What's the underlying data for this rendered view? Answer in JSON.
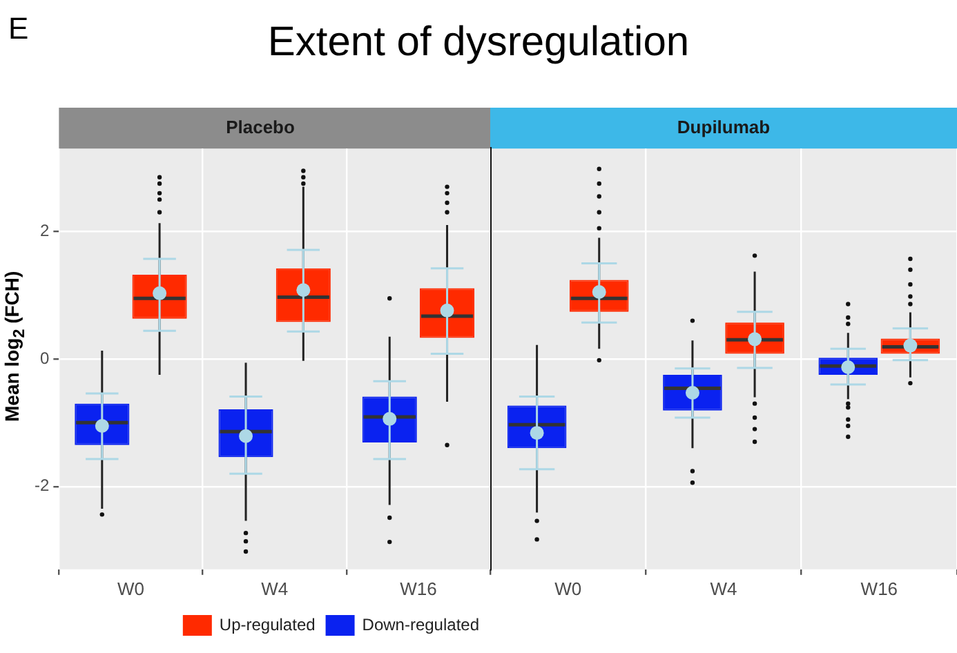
{
  "chart_data": [
    {
      "type": "box",
      "title": "Extent of dysregulation",
      "subtitle": "Placebo",
      "ylabel": "Mean log$_{2}$ (FCH)",
      "annotations": [
        "E"
      ],
      "categories": [
        "W0",
        "W4",
        "W16"
      ],
      "ylim": [
        -3.3,
        3.3
      ],
      "yticks": [
        -2,
        0,
        2
      ],
      "grid": true,
      "legend": "bottom",
      "series": [
        {
          "name": "Down-regulated",
          "color": "#0a22f0",
          "boxes": [
            {
              "low": -2.35,
              "q1": -1.35,
              "median": -1.0,
              "q3": -0.7,
              "high": 0.13,
              "outliers": [
                -2.44
              ]
            },
            {
              "low": -2.54,
              "q1": -1.54,
              "median": -1.14,
              "q3": -0.79,
              "high": -0.06,
              "outliers": [
                -2.73,
                -2.86,
                -3.02
              ]
            },
            {
              "low": -2.29,
              "q1": -1.31,
              "median": -0.91,
              "q3": -0.59,
              "high": 0.35,
              "outliers": [
                0.95,
                -2.49,
                -2.87
              ]
            }
          ]
        },
        {
          "type": "scatter",
          "color": "#add8e6",
          "x": [
            "W0",
            "W4",
            "W16"
          ],
          "values": [
            -1.05,
            -1.21,
            -0.94
          ],
          "errors": [
            [
              -1.57,
              -0.54
            ],
            [
              -1.8,
              -0.59
            ],
            [
              -1.57,
              -0.35
            ]
          ]
        },
        {
          "name": "Up-regulated",
          "color": "#ff2a00",
          "boxes": [
            {
              "low": -0.25,
              "q1": 0.63,
              "median": 0.95,
              "q3": 1.32,
              "high": 2.13,
              "outliers": [
                2.3,
                2.5,
                2.6,
                2.75,
                2.85
              ]
            },
            {
              "low": -0.03,
              "q1": 0.58,
              "median": 0.97,
              "q3": 1.42,
              "high": 2.7,
              "outliers": [
                2.75,
                2.85,
                2.95
              ]
            },
            {
              "low": -0.67,
              "q1": 0.33,
              "median": 0.67,
              "q3": 1.11,
              "high": 2.1,
              "outliers": [
                2.3,
                2.45,
                2.6,
                2.7,
                -1.35
              ]
            }
          ]
        },
        {
          "type": "scatter",
          "color": "#add8e6",
          "x": [
            "W0",
            "W4",
            "W16"
          ],
          "values": [
            1.03,
            1.08,
            0.76
          ],
          "errors": [
            [
              0.44,
              1.57
            ],
            [
              0.43,
              1.71
            ],
            [
              0.08,
              1.42
            ]
          ]
        }
      ]
    },
    {
      "type": "box",
      "subtitle": "Dupilumab",
      "categories": [
        "W0",
        "W4",
        "W16"
      ],
      "ylim": [
        -3.3,
        3.3
      ],
      "yticks": [
        -2,
        0,
        2
      ],
      "tick_labels": "x",
      "grid": true,
      "series": [
        {
          "color": "#0a22f0",
          "boxes": [
            {
              "low": -2.41,
              "q1": -1.4,
              "median": -1.03,
              "q3": -0.73,
              "high": 0.22,
              "outliers": [
                -2.54,
                -2.83
              ]
            },
            {
              "low": -1.4,
              "q1": -0.81,
              "median": -0.46,
              "q3": -0.25,
              "high": 0.29,
              "outliers": [
                0.6,
                -1.76,
                -1.94
              ]
            },
            {
              "low": -0.63,
              "q1": -0.25,
              "median": -0.11,
              "q3": 0.02,
              "high": 0.41,
              "outliers": [
                0.55,
                0.65,
                0.86,
                -0.7,
                -0.76,
                -0.95,
                -1.05,
                -1.22
              ]
            }
          ]
        },
        {
          "type": "scatter",
          "color": "#add8e6",
          "x": [
            "W0",
            "W4",
            "W16"
          ],
          "values": [
            -1.16,
            -0.53,
            -0.13
          ],
          "errors": [
            [
              -1.73,
              -0.59
            ],
            [
              -0.92,
              -0.15
            ],
            [
              -0.4,
              0.16
            ]
          ]
        },
        {
          "color": "#ff2a00",
          "boxes": [
            {
              "low": 0.16,
              "q1": 0.74,
              "median": 0.95,
              "q3": 1.24,
              "high": 1.9,
              "outliers": [
                2.05,
                2.3,
                2.55,
                2.75,
                2.98,
                -0.02
              ]
            },
            {
              "low": -0.6,
              "q1": 0.08,
              "median": 0.3,
              "q3": 0.57,
              "high": 1.37,
              "outliers": [
                1.62,
                -0.7,
                -0.92,
                -1.1,
                -1.3
              ]
            },
            {
              "low": -0.29,
              "q1": 0.08,
              "median": 0.19,
              "q3": 0.32,
              "high": 0.73,
              "outliers": [
                0.86,
                0.98,
                1.17,
                1.4,
                1.57,
                -0.38
              ]
            }
          ]
        },
        {
          "type": "scatter",
          "color": "#add8e6",
          "x": [
            "W0",
            "W4",
            "W16"
          ],
          "values": [
            1.05,
            0.31,
            0.21
          ],
          "errors": [
            [
              0.57,
              1.5
            ],
            [
              -0.14,
              0.74
            ],
            [
              -0.02,
              0.48
            ]
          ]
        }
      ]
    }
  ]
}
